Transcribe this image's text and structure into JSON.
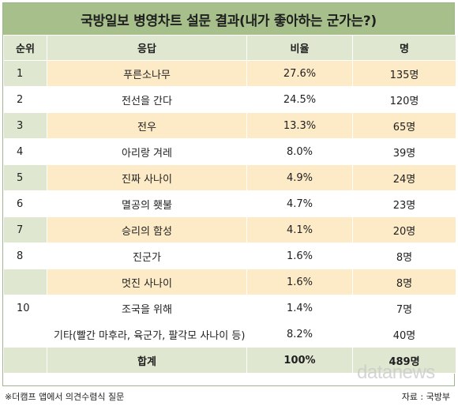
{
  "chart_data": {
    "type": "table",
    "title": "국방일보 병영차트 설문 결과(내가 좋아하는 군가는?)",
    "columns": [
      "순위",
      "응답",
      "비율",
      "명"
    ],
    "rows": [
      {
        "rank": "1",
        "answer": "푸른소나무",
        "ratio": "27.6%",
        "count": "135명"
      },
      {
        "rank": "2",
        "answer": "전선을 간다",
        "ratio": "24.5%",
        "count": "120명"
      },
      {
        "rank": "3",
        "answer": "전우",
        "ratio": "13.3%",
        "count": "65명"
      },
      {
        "rank": "4",
        "answer": "아리랑 겨레",
        "ratio": "8.0%",
        "count": "39명"
      },
      {
        "rank": "5",
        "answer": "진짜 사나이",
        "ratio": "4.9%",
        "count": "24명"
      },
      {
        "rank": "6",
        "answer": "멸공의 횃불",
        "ratio": "4.7%",
        "count": "23명"
      },
      {
        "rank": "7",
        "answer": "승리의 함성",
        "ratio": "4.1%",
        "count": "20명"
      },
      {
        "rank": "8",
        "answer": "진군가",
        "ratio": "1.6%",
        "count": "8명"
      },
      {
        "rank": "",
        "answer": "멋진 사나이",
        "ratio": "1.6%",
        "count": "8명"
      },
      {
        "rank": "10",
        "answer": "조국을 위해",
        "ratio": "1.4%",
        "count": "7명"
      },
      {
        "rank": "",
        "answer": "기타(빨간 마후라, 육군가, 팔각모 사나이 등)",
        "ratio": "8.2%",
        "count": "40명"
      }
    ],
    "total": {
      "label": "합계",
      "ratio": "100%",
      "count": "489명"
    }
  },
  "footer": {
    "note": "※더캠프 앱에서 의견수렴식 질문",
    "source": "자료 : 국방부"
  },
  "watermark": "datanews",
  "colors": {
    "title_bg": "#a7c08b",
    "header_bg": "#dfe7d1",
    "highlight_bg": "#fdebc8"
  }
}
